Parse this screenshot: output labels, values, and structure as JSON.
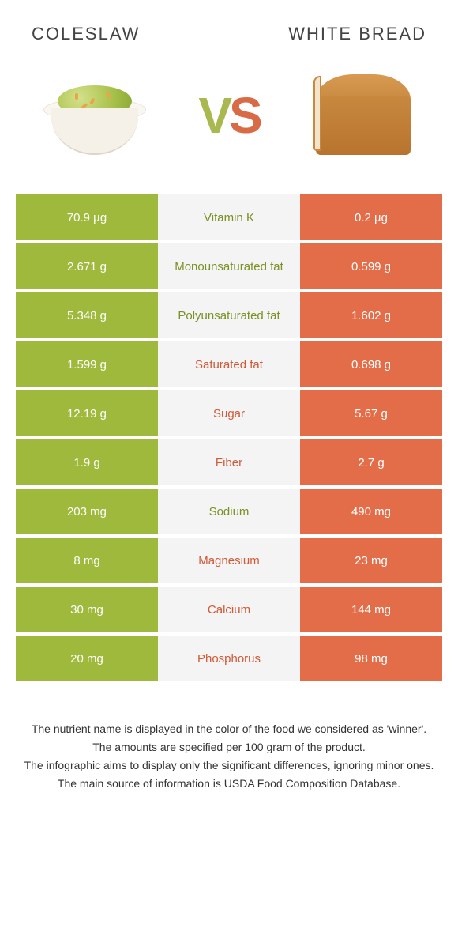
{
  "header": {
    "left_food": "COLESLAW",
    "right_food": "WHITE BREAD",
    "vs_v": "V",
    "vs_s": "S"
  },
  "colors": {
    "left_win": "#9fb93c",
    "right_win": "#e36c49",
    "left_text": "#7a9124",
    "right_text": "#d05a37",
    "neutral_bg": "#f4f4f4"
  },
  "rows": [
    {
      "left": "70.9 µg",
      "nutrient": "Vitamin K",
      "right": "0.2 µg",
      "winner": "left"
    },
    {
      "left": "2.671 g",
      "nutrient": "Monounsaturated fat",
      "right": "0.599 g",
      "winner": "left"
    },
    {
      "left": "5.348 g",
      "nutrient": "Polyunsaturated fat",
      "right": "1.602 g",
      "winner": "left"
    },
    {
      "left": "1.599 g",
      "nutrient": "Saturated fat",
      "right": "0.698 g",
      "winner": "right"
    },
    {
      "left": "12.19 g",
      "nutrient": "Sugar",
      "right": "5.67 g",
      "winner": "right"
    },
    {
      "left": "1.9 g",
      "nutrient": "Fiber",
      "right": "2.7 g",
      "winner": "right"
    },
    {
      "left": "203 mg",
      "nutrient": "Sodium",
      "right": "490 mg",
      "winner": "left"
    },
    {
      "left": "8 mg",
      "nutrient": "Magnesium",
      "right": "23 mg",
      "winner": "right"
    },
    {
      "left": "30 mg",
      "nutrient": "Calcium",
      "right": "144 mg",
      "winner": "right"
    },
    {
      "left": "20 mg",
      "nutrient": "Phosphorus",
      "right": "98 mg",
      "winner": "right"
    }
  ],
  "footnotes": [
    "The nutrient name is displayed in the color of the food we considered as 'winner'.",
    "The amounts are specified per 100 gram of the product.",
    "The infographic aims to display only the significant differences, ignoring minor ones.",
    "The main source of information is USDA Food Composition Database."
  ]
}
